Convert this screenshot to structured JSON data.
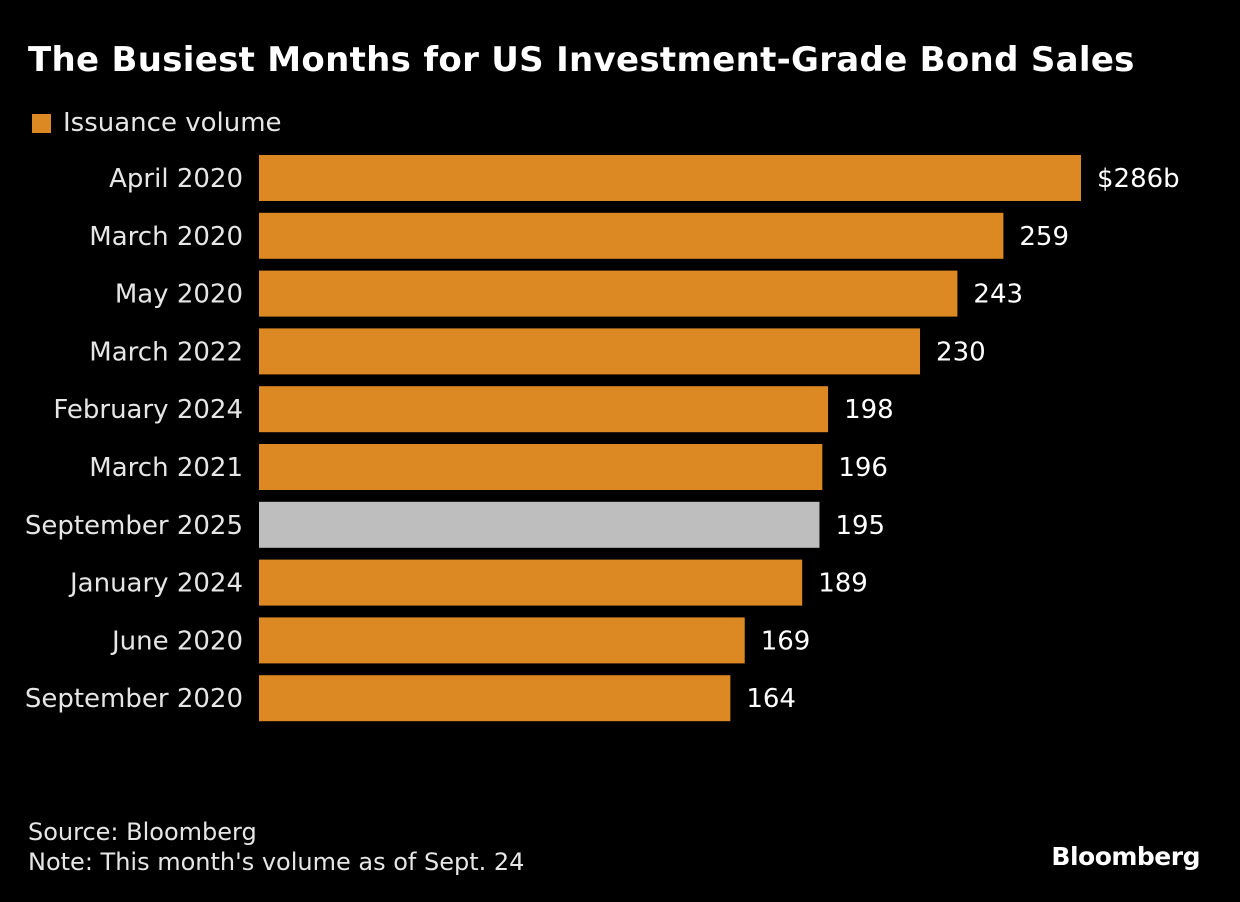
{
  "title": "The Busiest Months for US Investment-Grade Bond Sales",
  "legend": {
    "label": "Issuance volume",
    "color": "#DC8924"
  },
  "highlight_color": "#BEBEBE",
  "footer": {
    "source": "Source: Bloomberg",
    "note": "Note: This month's volume as of Sept. 24"
  },
  "logo": "Bloomberg",
  "chart_data": {
    "type": "bar",
    "orientation": "horizontal",
    "title": "The Busiest Months for US Investment-Grade Bond Sales",
    "categories": [
      "April 2020",
      "March 2020",
      "May 2020",
      "March 2022",
      "February 2024",
      "March 2021",
      "September 2025",
      "January 2024",
      "June 2020",
      "September 2020"
    ],
    "series": [
      {
        "name": "Issuance volume",
        "values": [
          286,
          259,
          243,
          230,
          198,
          196,
          195,
          189,
          169,
          164
        ]
      }
    ],
    "data_labels": [
      "$286b",
      "259",
      "243",
      "230",
      "198",
      "196",
      "195",
      "189",
      "169",
      "164"
    ],
    "highlighted": [
      "September 2025"
    ],
    "xlim": [
      0,
      286
    ],
    "grid": false,
    "legend": "top-left"
  }
}
